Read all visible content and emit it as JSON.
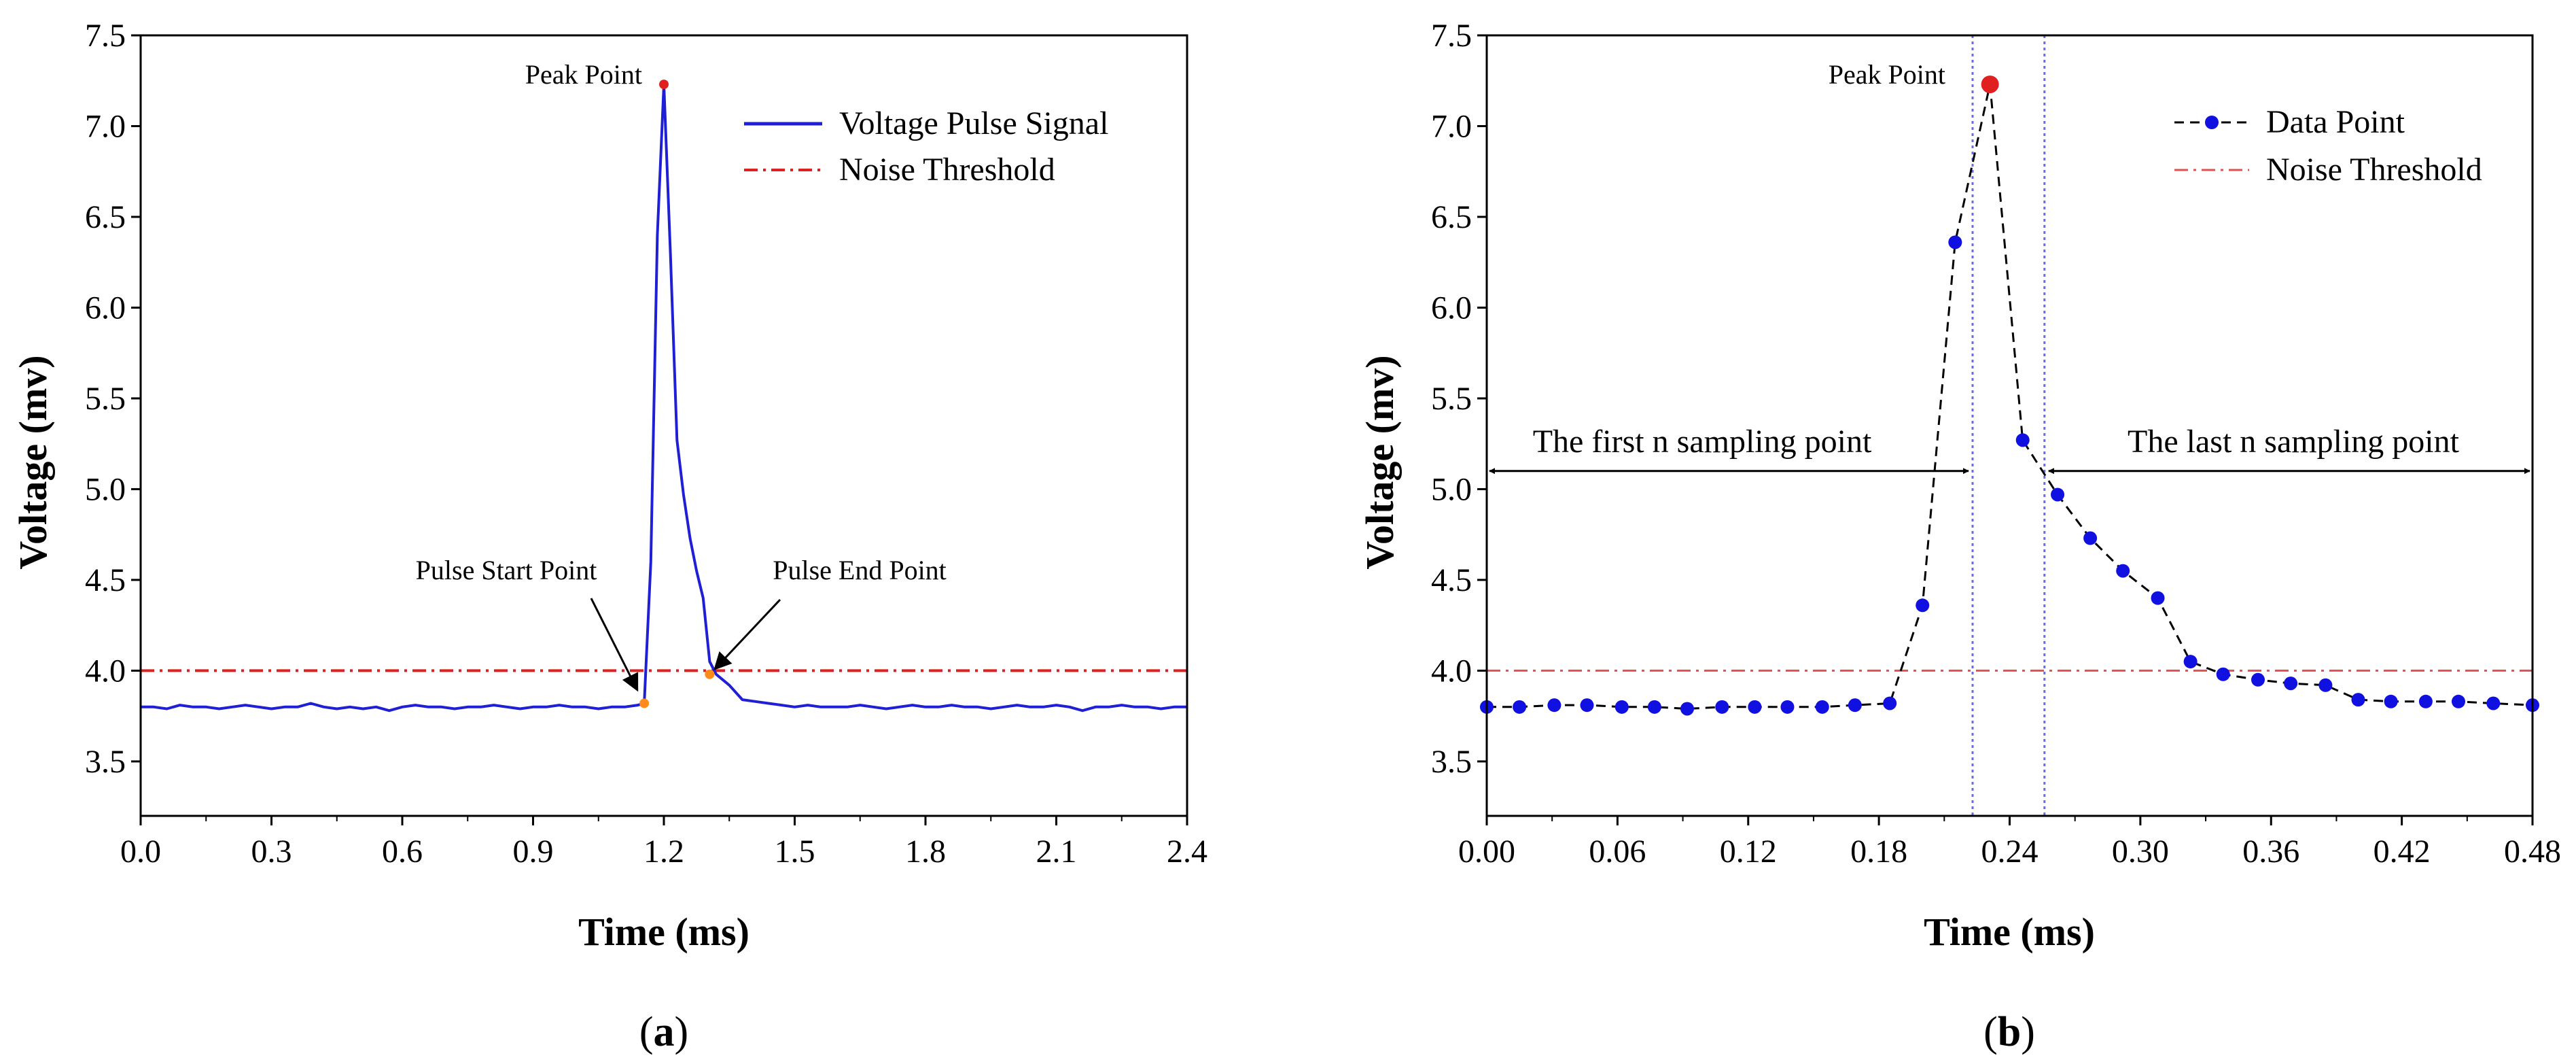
{
  "chart_data": [
    {
      "type": "line",
      "panel_label": "a",
      "xlabel": "Time (ms)",
      "ylabel": "Voltage (mv)",
      "xlim": [
        0.0,
        2.4
      ],
      "ylim": [
        3.2,
        7.5
      ],
      "xticks": [
        0.0,
        0.3,
        0.6,
        0.9,
        1.2,
        1.5,
        1.8,
        2.1,
        2.4
      ],
      "xtick_labels": [
        "0.0",
        "0.3",
        "0.6",
        "0.9",
        "1.2",
        "1.5",
        "1.8",
        "2.1",
        "2.4"
      ],
      "yticks": [
        3.5,
        4.0,
        4.5,
        5.0,
        5.5,
        6.0,
        6.5,
        7.0,
        7.5
      ],
      "ytick_labels": [
        "3.5",
        "4.0",
        "4.5",
        "5.0",
        "5.5",
        "6.0",
        "6.5",
        "7.0",
        "7.5"
      ],
      "legend_position": "top-right",
      "series": [
        {
          "name": "Voltage Pulse Signal",
          "color": "#1f1fd6",
          "x": [
            0.0,
            0.03,
            0.06,
            0.09,
            0.12,
            0.15,
            0.18,
            0.21,
            0.24,
            0.27,
            0.3,
            0.33,
            0.36,
            0.39,
            0.42,
            0.45,
            0.48,
            0.51,
            0.54,
            0.57,
            0.6,
            0.63,
            0.66,
            0.69,
            0.72,
            0.75,
            0.78,
            0.81,
            0.84,
            0.87,
            0.9,
            0.93,
            0.96,
            0.99,
            1.02,
            1.05,
            1.08,
            1.11,
            1.14,
            1.155,
            1.17,
            1.185,
            1.2,
            1.215,
            1.23,
            1.245,
            1.26,
            1.275,
            1.29,
            1.305,
            1.32,
            1.35,
            1.38,
            1.41,
            1.44,
            1.47,
            1.5,
            1.53,
            1.56,
            1.59,
            1.62,
            1.65,
            1.68,
            1.71,
            1.74,
            1.77,
            1.8,
            1.83,
            1.86,
            1.89,
            1.92,
            1.95,
            1.98,
            2.01,
            2.04,
            2.07,
            2.1,
            2.13,
            2.16,
            2.19,
            2.22,
            2.25,
            2.28,
            2.31,
            2.34,
            2.37,
            2.4
          ],
          "y": [
            3.8,
            3.8,
            3.79,
            3.81,
            3.8,
            3.8,
            3.79,
            3.8,
            3.81,
            3.8,
            3.79,
            3.8,
            3.8,
            3.82,
            3.8,
            3.79,
            3.8,
            3.79,
            3.8,
            3.78,
            3.8,
            3.81,
            3.8,
            3.8,
            3.79,
            3.8,
            3.8,
            3.81,
            3.8,
            3.79,
            3.8,
            3.8,
            3.81,
            3.8,
            3.8,
            3.79,
            3.8,
            3.8,
            3.81,
            3.82,
            4.6,
            6.4,
            7.23,
            6.3,
            5.27,
            4.97,
            4.73,
            4.55,
            4.4,
            4.05,
            3.98,
            3.92,
            3.84,
            3.83,
            3.82,
            3.81,
            3.8,
            3.81,
            3.8,
            3.8,
            3.8,
            3.81,
            3.8,
            3.79,
            3.8,
            3.81,
            3.8,
            3.8,
            3.81,
            3.8,
            3.8,
            3.79,
            3.8,
            3.81,
            3.8,
            3.8,
            3.81,
            3.8,
            3.78,
            3.8,
            3.8,
            3.81,
            3.8,
            3.8,
            3.79,
            3.8,
            3.8
          ]
        },
        {
          "name": "Noise Threshold",
          "color": "#e02020",
          "x": [
            0.0,
            2.4
          ],
          "y": [
            4.0,
            4.0
          ]
        }
      ],
      "points": [
        {
          "name": "Peak Point",
          "x": 1.2,
          "y": 7.23
        },
        {
          "name": "Pulse Start Point",
          "x": 1.155,
          "y": 3.82
        },
        {
          "name": "Pulse End Point",
          "x": 1.305,
          "y": 3.98
        }
      ],
      "annotations": [
        "Peak Point",
        "Pulse Start Point",
        "Pulse End Point"
      ],
      "point_colors": {
        "peak": "#e02020",
        "start_end": "#ff8c1a"
      }
    },
    {
      "type": "line",
      "panel_label": "b",
      "xlabel": "Time (ms)",
      "ylabel": "Voltage (mv)",
      "xlim": [
        0.0,
        0.48
      ],
      "ylim": [
        3.2,
        7.5
      ],
      "xticks": [
        0.0,
        0.06,
        0.12,
        0.18,
        0.24,
        0.3,
        0.36,
        0.42,
        0.48
      ],
      "xtick_labels": [
        "0.00",
        "0.06",
        "0.12",
        "0.18",
        "0.24",
        "0.30",
        "0.36",
        "0.42",
        "0.48"
      ],
      "yticks": [
        3.5,
        4.0,
        4.5,
        5.0,
        5.5,
        6.0,
        6.5,
        7.0,
        7.5
      ],
      "ytick_labels": [
        "3.5",
        "4.0",
        "4.5",
        "5.0",
        "5.5",
        "6.0",
        "6.5",
        "7.0",
        "7.5"
      ],
      "legend_position": "top-right",
      "series": [
        {
          "name": "Data Point",
          "color": "#1010e0",
          "x": [
            0.0,
            0.015,
            0.031,
            0.046,
            0.062,
            0.077,
            0.092,
            0.108,
            0.123,
            0.138,
            0.154,
            0.169,
            0.185,
            0.2,
            0.215,
            0.231,
            0.246,
            0.262,
            0.277,
            0.292,
            0.308,
            0.323,
            0.338,
            0.354,
            0.369,
            0.385,
            0.4,
            0.415,
            0.431,
            0.446,
            0.462,
            0.48
          ],
          "y": [
            3.8,
            3.8,
            3.81,
            3.81,
            3.8,
            3.8,
            3.79,
            3.8,
            3.8,
            3.8,
            3.8,
            3.81,
            3.82,
            4.36,
            6.36,
            7.23,
            5.27,
            4.97,
            4.73,
            4.55,
            4.4,
            4.05,
            3.98,
            3.95,
            3.93,
            3.92,
            3.84,
            3.83,
            3.83,
            3.83,
            3.82,
            3.81
          ]
        },
        {
          "name": "Noise Threshold",
          "color": "#e05050",
          "x": [
            0.0,
            0.48
          ],
          "y": [
            4.0,
            4.0
          ]
        }
      ],
      "peak_index": 15,
      "peak_color": "#e02020",
      "vertical_markers_x": [
        0.223,
        0.256
      ],
      "vertical_marker_color": "#6a6ae8",
      "arrow_y": 5.1,
      "annotations": [
        "Peak Point",
        "The first n sampling point",
        "The last n sampling point"
      ]
    }
  ]
}
